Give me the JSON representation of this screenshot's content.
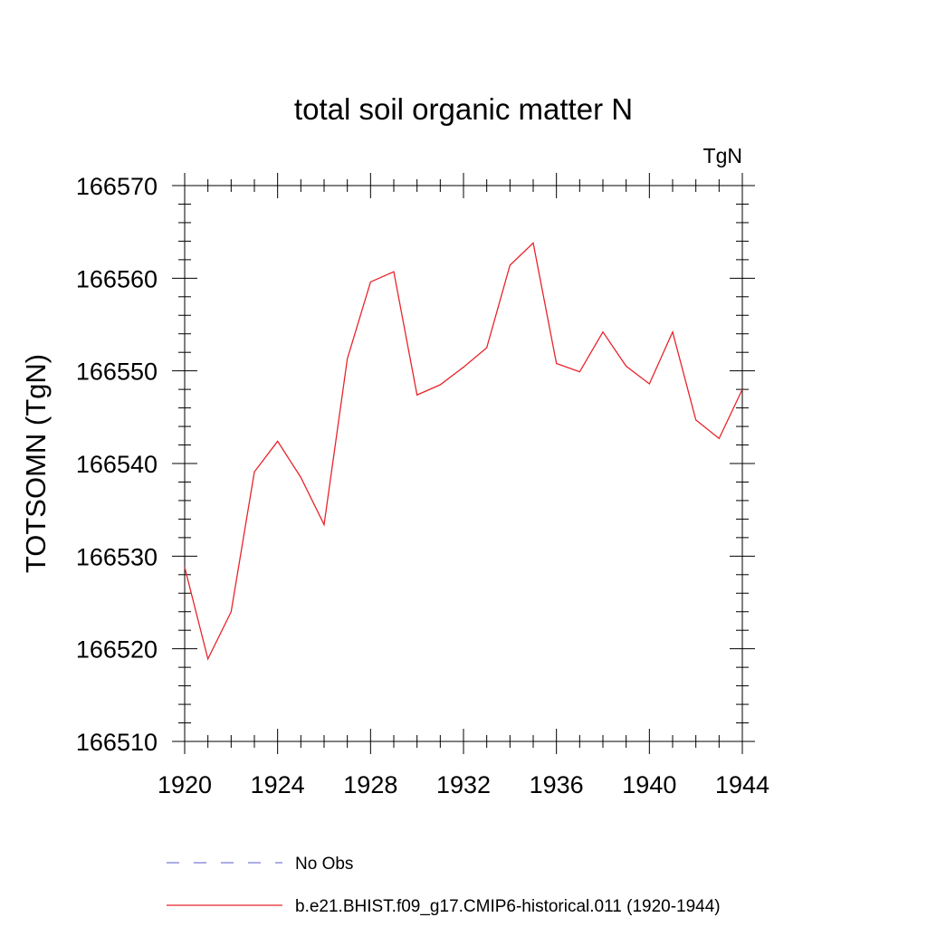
{
  "chart_data": {
    "type": "line",
    "title": "total soil organic matter N",
    "units_label": "TgN",
    "ylabel": "TOTSOMN  (TgN)",
    "xlabel": "",
    "xlim": [
      1920,
      1944
    ],
    "ylim": [
      166510,
      166570
    ],
    "x_ticks": [
      1920,
      1924,
      1928,
      1932,
      1936,
      1940,
      1944
    ],
    "y_ticks": [
      166510,
      166520,
      166530,
      166540,
      166550,
      166560,
      166570
    ],
    "x_minor_step": 1,
    "y_minor_step": 2,
    "grid": false,
    "legend_position": "bottom",
    "series": [
      {
        "name": "No Obs",
        "color": "#7b7bd6",
        "dash": "dashed",
        "x": [],
        "y": []
      },
      {
        "name": "b.e21.BHIST.f09_g17.CMIP6-historical.011 (1920-1944)",
        "color": "#e8242b",
        "dash": "solid",
        "x": [
          1920,
          1921,
          1922,
          1923,
          1924,
          1925,
          1926,
          1927,
          1928,
          1929,
          1930,
          1931,
          1932,
          1933,
          1934,
          1935,
          1936,
          1937,
          1938,
          1939,
          1940,
          1941,
          1942,
          1943,
          1944
        ],
        "y": [
          166528.8,
          166518.9,
          166524.0,
          166539.1,
          166542.4,
          166538.5,
          166533.4,
          166551.3,
          166559.6,
          166560.7,
          166547.4,
          166548.5,
          166550.4,
          166552.5,
          166561.4,
          166563.8,
          166550.8,
          166549.9,
          166554.2,
          166550.5,
          166548.6,
          166554.2,
          166544.7,
          166542.7,
          166548.0
        ]
      }
    ]
  }
}
